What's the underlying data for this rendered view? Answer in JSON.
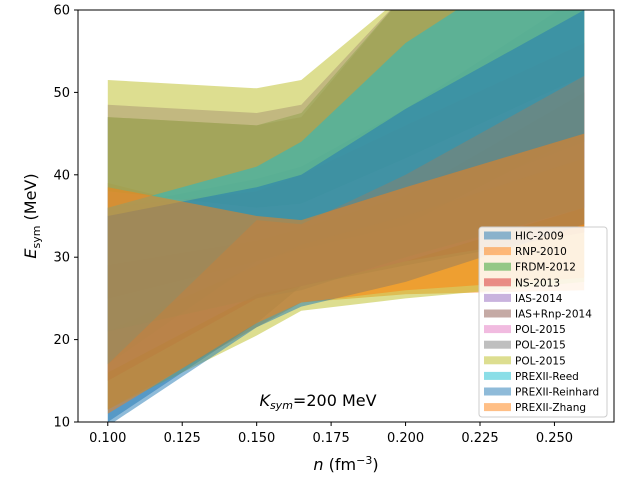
{
  "chart_data": {
    "type": "area",
    "xlabel": "n (fm⁻³)",
    "ylabel": "E_sym (MeV)",
    "xlim": [
      0.09,
      0.27
    ],
    "ylim": [
      10,
      60
    ],
    "xticks": [
      "0.100",
      "0.125",
      "0.150",
      "0.175",
      "0.200",
      "0.225",
      "0.250"
    ],
    "yticks": [
      "10",
      "20",
      "30",
      "40",
      "50",
      "60"
    ],
    "annotation": "K_sym=200 MeV",
    "legend_position": "lower-right",
    "grid": false,
    "x": [
      0.1,
      0.15,
      0.165,
      0.2,
      0.26
    ],
    "series": [
      {
        "name": "HIC-2009",
        "color": "#1f77b4",
        "upper": [
          36.0,
          39.5,
          41.0,
          48.0,
          62.0
        ],
        "lower": [
          10.0,
          22.0,
          26.5,
          29.0,
          33.0
        ]
      },
      {
        "name": "RNP-2010",
        "color": "#ff7f0e",
        "upper": [
          39.0,
          34.5,
          34.0,
          38.0,
          45.0
        ],
        "lower": [
          11.5,
          21.5,
          24.5,
          25.5,
          26.0
        ]
      },
      {
        "name": "FRDM-2012",
        "color": "#2ca02c",
        "upper": [
          47.0,
          46.0,
          47.5,
          62.0,
          70.0
        ],
        "lower": [
          17.0,
          29.5,
          31.5,
          35.5,
          44.0
        ]
      },
      {
        "name": "NS-2013",
        "color": "#d62728",
        "upper": [
          36.0,
          38.0,
          40.0,
          46.0,
          56.0
        ],
        "lower": [
          15.0,
          25.0,
          26.5,
          29.5,
          33.0
        ]
      },
      {
        "name": "IAS-2014",
        "color": "#9467bd",
        "upper": [
          48.5,
          47.5,
          48.5,
          62.0,
          70.0
        ],
        "lower": [
          21.0,
          29.0,
          31.5,
          35.0,
          42.0
        ]
      },
      {
        "name": "IAS+Rnp-2014",
        "color": "#8c564b",
        "upper": [
          29.0,
          32.0,
          33.5,
          37.5,
          50.0
        ],
        "lower": [
          25.0,
          29.5,
          31.0,
          34.0,
          45.0
        ]
      },
      {
        "name": "POL-2015",
        "color": "#e377c2",
        "upper": [
          38.0,
          36.0,
          36.5,
          42.0,
          52.0
        ],
        "lower": [
          16.0,
          25.5,
          26.5,
          29.5,
          36.0
        ]
      },
      {
        "name": "POL-2015",
        "color": "#7f7f7f",
        "upper": [
          47.0,
          46.0,
          47.0,
          62.0,
          70.0
        ],
        "lower": [
          21.0,
          25.0,
          26.0,
          30.0,
          36.0
        ]
      },
      {
        "name": "POL-2015",
        "color": "#bcbd22",
        "upper": [
          51.5,
          50.5,
          51.5,
          62.0,
          70.0
        ],
        "lower": [
          11.5,
          20.5,
          23.5,
          25.0,
          27.0
        ]
      },
      {
        "name": "PREXII-Reed",
        "color": "#17becf",
        "upper": [
          36.0,
          41.0,
          44.0,
          56.0,
          70.0
        ],
        "lower": [
          17.0,
          34.5,
          34.0,
          40.0,
          52.0
        ]
      },
      {
        "name": "PREXII-Reinhard",
        "color": "#1f77b4",
        "upper": [
          35.0,
          38.5,
          40.0,
          48.0,
          60.0
        ],
        "lower": [
          9.5,
          21.5,
          24.0,
          27.0,
          34.0
        ]
      },
      {
        "name": "PREXII-Zhang",
        "color": "#ff7f0e",
        "upper": [
          38.5,
          35.0,
          34.5,
          38.5,
          45.0
        ],
        "lower": [
          11.0,
          22.0,
          24.5,
          26.0,
          27.5
        ]
      }
    ]
  }
}
